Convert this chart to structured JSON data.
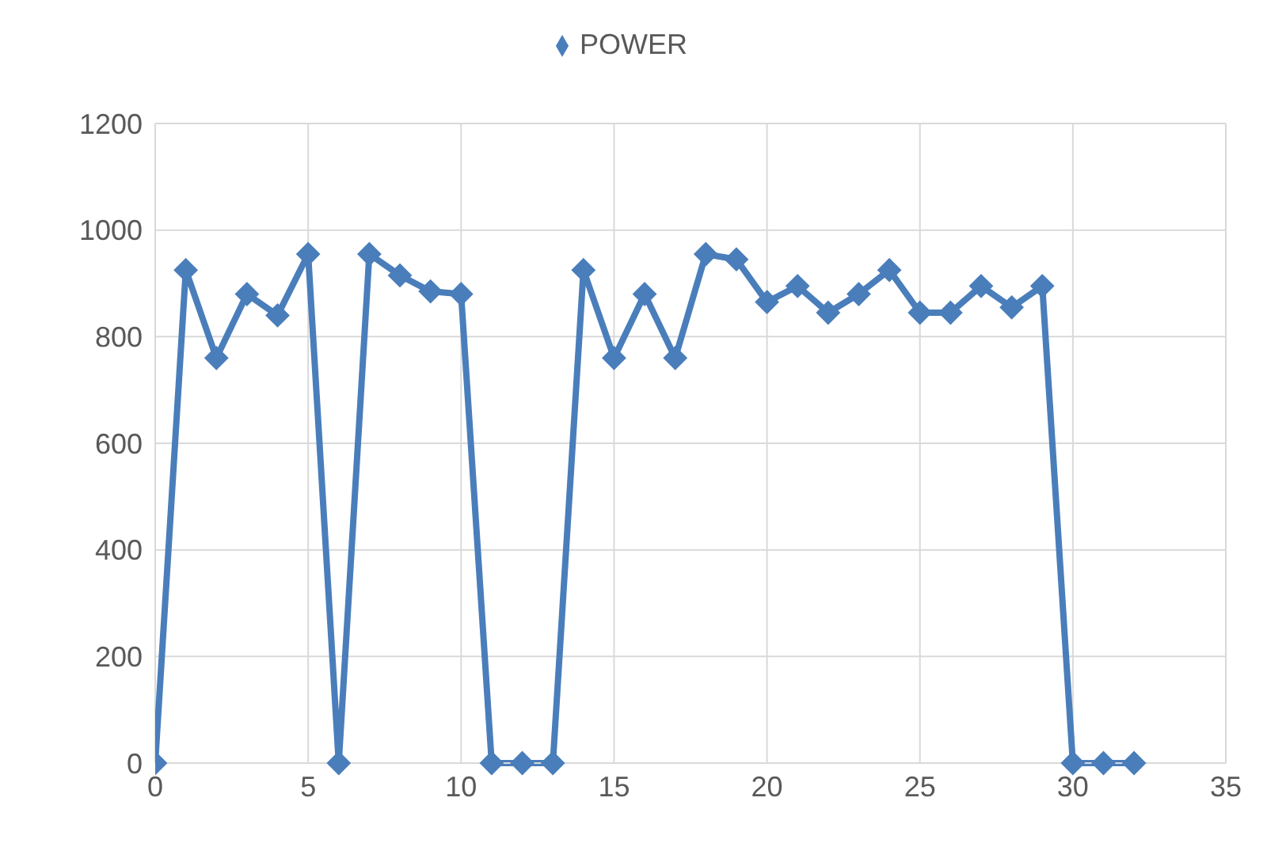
{
  "chart_data": {
    "type": "line",
    "x": [
      0,
      1,
      2,
      3,
      4,
      5,
      6,
      7,
      8,
      9,
      10,
      11,
      12,
      13,
      14,
      15,
      16,
      17,
      18,
      19,
      20,
      21,
      22,
      23,
      24,
      25,
      26,
      27,
      28,
      29,
      30,
      31,
      32
    ],
    "series": [
      {
        "name": "POWER",
        "color": "#4a7ebb",
        "values": [
          0,
          925,
          760,
          880,
          840,
          955,
          0,
          955,
          915,
          885,
          880,
          0,
          0,
          0,
          925,
          760,
          880,
          760,
          955,
          945,
          865,
          895,
          845,
          880,
          925,
          845,
          845,
          895,
          855,
          895,
          0,
          0,
          0
        ]
      }
    ],
    "xlim": [
      0,
      35
    ],
    "xticks": [
      0,
      5,
      10,
      15,
      20,
      25,
      30,
      35
    ],
    "ylim": [
      0,
      1200
    ],
    "yticks": [
      0,
      200,
      400,
      600,
      800,
      1000,
      1200
    ],
    "grid": true,
    "legend": "top",
    "marker": "diamond",
    "line_style": "solid"
  }
}
